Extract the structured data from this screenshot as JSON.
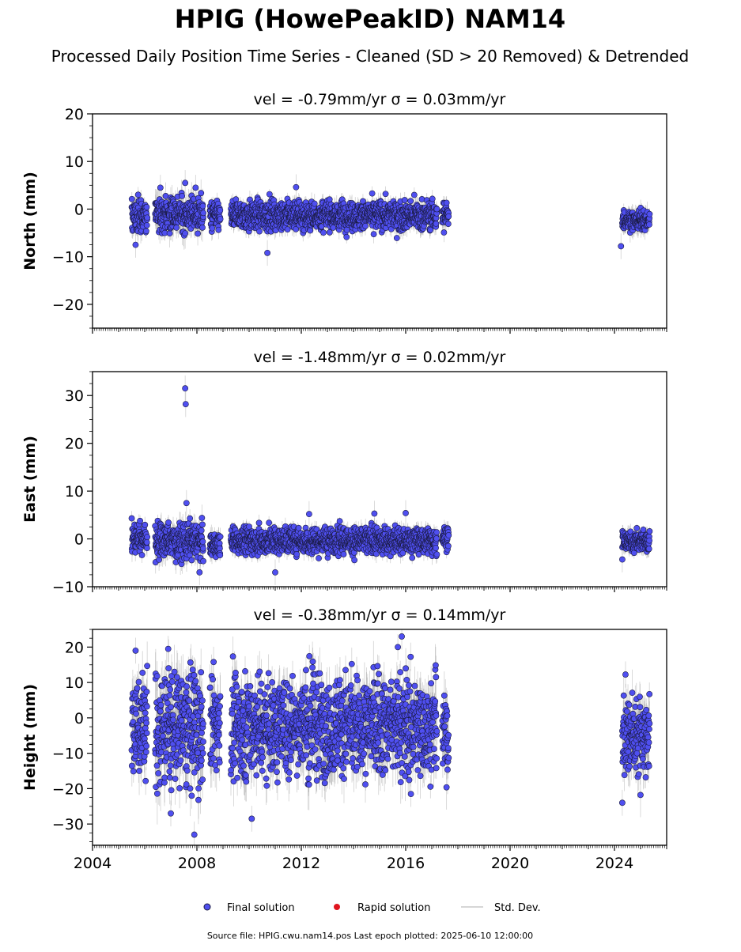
{
  "figure": {
    "title": "HPIG (HowePeakID) NAM14",
    "subtitle": "Processed Daily Position Time Series - Cleaned (SD > 20 Removed) & Detrended",
    "footer": "Source file: HPIG.cwu.nam14.pos  Last epoch plotted: 2025-06-10 12:00:00"
  },
  "legend": {
    "placement": "bottom-center",
    "items": [
      {
        "label": "Final solution",
        "color": "#4f4ff0",
        "marker": "circle"
      },
      {
        "label": "Rapid solution",
        "color": "#e0151f",
        "marker": "circle"
      },
      {
        "label": "Std. Dev.",
        "color": "#c8c8c8",
        "marker": "line"
      }
    ]
  },
  "chart_data": [
    {
      "type": "scatter",
      "component": "North",
      "title_prefix": "vel = ",
      "velocity": "-0.79mm/yr",
      "sigma_label": "σ = 0.03mm/yr",
      "ylabel": "North (mm)",
      "ylim": [
        -25,
        20
      ],
      "yticks": [
        -20,
        -10,
        0,
        10,
        20
      ],
      "xlim": [
        2004.0,
        2026.0
      ],
      "xticks": [
        2004,
        2008,
        2012,
        2016,
        2020,
        2024
      ],
      "show_xtick_labels": false,
      "segments": [
        {
          "start": 2005.5,
          "end": 2006.1,
          "mean": -1.5,
          "spread": 1.8,
          "sd": 1.6
        },
        {
          "start": 2006.4,
          "end": 2008.25,
          "mean": -1.0,
          "spread": 1.8,
          "sd": 2.2
        },
        {
          "start": 2008.5,
          "end": 2008.9,
          "mean": -1.5,
          "spread": 1.5,
          "sd": 1.6
        },
        {
          "start": 2009.3,
          "end": 2017.2,
          "mean": -1.3,
          "spread": 1.5,
          "sd": 1.4
        },
        {
          "start": 2017.4,
          "end": 2017.65,
          "mean": -1.5,
          "spread": 1.5,
          "sd": 1.5
        },
        {
          "start": 2024.3,
          "end": 2025.35,
          "mean": -2.3,
          "spread": 1.0,
          "sd": 1.5
        }
      ],
      "outliers": [
        {
          "x": 2006.6,
          "y": 4.5
        },
        {
          "x": 2007.55,
          "y": 5.5
        },
        {
          "x": 2007.95,
          "y": 4.5
        },
        {
          "x": 2005.65,
          "y": -7.5
        },
        {
          "x": 2010.7,
          "y": -9.2
        },
        {
          "x": 2011.8,
          "y": 4.6
        },
        {
          "x": 2024.25,
          "y": -7.8
        }
      ],
      "series": [
        {
          "name": "Final solution"
        }
      ]
    },
    {
      "type": "scatter",
      "component": "East",
      "title_prefix": "vel = ",
      "velocity": "-1.48mm/yr",
      "sigma_label": "σ = 0.02mm/yr",
      "ylabel": "East (mm)",
      "ylim": [
        -10,
        35
      ],
      "yticks": [
        -10,
        0,
        10,
        20,
        30
      ],
      "xlim": [
        2004.0,
        2026.0
      ],
      "xticks": [
        2004,
        2008,
        2012,
        2016,
        2020,
        2024
      ],
      "show_xtick_labels": false,
      "segments": [
        {
          "start": 2005.5,
          "end": 2006.1,
          "mean": 0.3,
          "spread": 1.6,
          "sd": 1.5
        },
        {
          "start": 2006.4,
          "end": 2008.25,
          "mean": -0.5,
          "spread": 1.8,
          "sd": 2.0
        },
        {
          "start": 2008.5,
          "end": 2008.9,
          "mean": -1.3,
          "spread": 1.3,
          "sd": 1.5
        },
        {
          "start": 2009.3,
          "end": 2017.2,
          "mean": -0.4,
          "spread": 1.4,
          "sd": 1.3
        },
        {
          "start": 2017.4,
          "end": 2017.65,
          "mean": 0.2,
          "spread": 1.2,
          "sd": 1.3
        },
        {
          "start": 2024.3,
          "end": 2025.35,
          "mean": -0.6,
          "spread": 1.0,
          "sd": 1.4
        }
      ],
      "outliers": [
        {
          "x": 2007.55,
          "y": 31.5
        },
        {
          "x": 2007.57,
          "y": 28.2
        },
        {
          "x": 2007.6,
          "y": 7.5
        },
        {
          "x": 2008.1,
          "y": -7.0
        },
        {
          "x": 2011.0,
          "y": -7.0
        },
        {
          "x": 2012.3,
          "y": 5.2
        },
        {
          "x": 2014.8,
          "y": 5.3
        },
        {
          "x": 2016.0,
          "y": 5.4
        },
        {
          "x": 2024.3,
          "y": -4.3
        }
      ],
      "series": [
        {
          "name": "Final solution"
        }
      ]
    },
    {
      "type": "scatter",
      "component": "Height",
      "title_prefix": "vel = ",
      "velocity": "-0.38mm/yr",
      "sigma_label": "σ = 0.14mm/yr",
      "ylabel": "Height (mm)",
      "ylim": [
        -36,
        25
      ],
      "yticks": [
        -30,
        -20,
        -10,
        0,
        10,
        20
      ],
      "xlim": [
        2004.0,
        2026.0
      ],
      "xticks": [
        2004,
        2008,
        2012,
        2016,
        2020,
        2024
      ],
      "show_xtick_labels": true,
      "segments": [
        {
          "start": 2005.5,
          "end": 2006.1,
          "mean": -2.0,
          "spread": 7.0,
          "sd": 5.0
        },
        {
          "start": 2006.4,
          "end": 2008.25,
          "mean": -3.0,
          "spread": 8.0,
          "sd": 6.0
        },
        {
          "start": 2008.5,
          "end": 2008.9,
          "mean": -2.0,
          "spread": 7.0,
          "sd": 5.0
        },
        {
          "start": 2009.3,
          "end": 2017.2,
          "mean": -2.0,
          "spread": 7.0,
          "sd": 5.0
        },
        {
          "start": 2017.4,
          "end": 2017.65,
          "mean": -5.0,
          "spread": 6.0,
          "sd": 5.0
        },
        {
          "start": 2024.3,
          "end": 2025.35,
          "mean": -5.0,
          "spread": 6.0,
          "sd": 5.0
        }
      ],
      "outliers": [
        {
          "x": 2005.65,
          "y": 19.0
        },
        {
          "x": 2006.9,
          "y": 19.5
        },
        {
          "x": 2007.8,
          "y": -22.0
        },
        {
          "x": 2007.9,
          "y": -33.0
        },
        {
          "x": 2010.1,
          "y": -28.5
        },
        {
          "x": 2015.85,
          "y": 23.0
        },
        {
          "x": 2015.7,
          "y": 20.0
        },
        {
          "x": 2024.3,
          "y": -24.0
        },
        {
          "x": 2007.0,
          "y": -27.0
        },
        {
          "x": 2016.2,
          "y": -21.5
        }
      ],
      "series": [
        {
          "name": "Final solution"
        }
      ]
    }
  ],
  "colors": {
    "final": "#4f4ff0",
    "final_edge": "#1a1a40",
    "rapid": "#e0151f",
    "sd": "#9a9a9a"
  }
}
